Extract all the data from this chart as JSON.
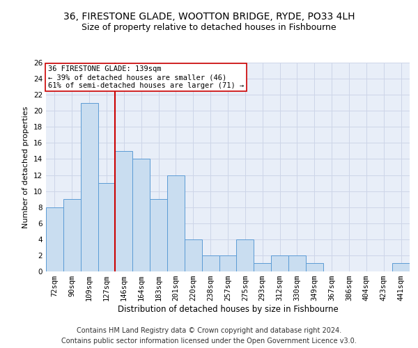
{
  "title": "36, FIRESTONE GLADE, WOOTTON BRIDGE, RYDE, PO33 4LH",
  "subtitle": "Size of property relative to detached houses in Fishbourne",
  "xlabel": "Distribution of detached houses by size in Fishbourne",
  "ylabel": "Number of detached properties",
  "categories": [
    "72sqm",
    "90sqm",
    "109sqm",
    "127sqm",
    "146sqm",
    "164sqm",
    "183sqm",
    "201sqm",
    "220sqm",
    "238sqm",
    "257sqm",
    "275sqm",
    "293sqm",
    "312sqm",
    "330sqm",
    "349sqm",
    "367sqm",
    "386sqm",
    "404sqm",
    "423sqm",
    "441sqm"
  ],
  "values": [
    8,
    9,
    21,
    11,
    15,
    14,
    9,
    12,
    4,
    2,
    2,
    4,
    1,
    2,
    2,
    1,
    0,
    0,
    0,
    0,
    1
  ],
  "bar_color": "#c9ddf0",
  "bar_edge_color": "#5b9bd5",
  "vline_x": 3.5,
  "vline_color": "#cc0000",
  "annotation_line1": "36 FIRESTONE GLADE: 139sqm",
  "annotation_line2": "← 39% of detached houses are smaller (46)",
  "annotation_line3": "61% of semi-detached houses are larger (71) →",
  "annotation_box_color": "#ffffff",
  "annotation_box_edge": "#cc0000",
  "ylim": [
    0,
    26
  ],
  "yticks": [
    0,
    2,
    4,
    6,
    8,
    10,
    12,
    14,
    16,
    18,
    20,
    22,
    24,
    26
  ],
  "grid_color": "#cdd5e8",
  "background_color": "#e8eef8",
  "footer_line1": "Contains HM Land Registry data © Crown copyright and database right 2024.",
  "footer_line2": "Contains public sector information licensed under the Open Government Licence v3.0.",
  "title_fontsize": 10,
  "subtitle_fontsize": 9,
  "xlabel_fontsize": 8.5,
  "ylabel_fontsize": 8,
  "tick_fontsize": 7.5,
  "annotation_fontsize": 7.5,
  "footer_fontsize": 7
}
